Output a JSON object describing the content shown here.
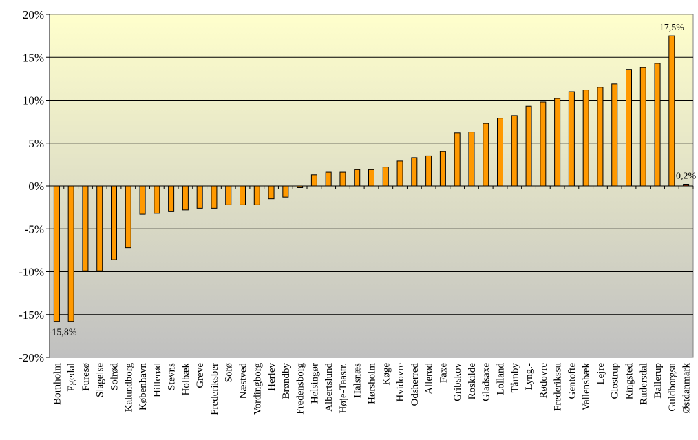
{
  "chart_data": {
    "type": "bar",
    "categories": [
      "Bornholm",
      "Egedal",
      "Furesø",
      "Slagelse",
      "Solrød",
      "Kalundborg",
      "København",
      "Hillerød",
      "Stevns",
      "Holbæk",
      "Greve",
      "Frederiksber",
      "Sorø",
      "Næstved",
      "Vordingborg",
      "Herlev",
      "Brøndby",
      "Fredensborg",
      "Helsingør",
      "Albertslund",
      "Høje-Taastr.",
      "Halsnæs",
      "Hørsholm",
      "Køge",
      "Hvidovre",
      "Odsherred",
      "Allerød",
      "Faxe",
      "Gribskov",
      "Roskilde",
      "Gladsaxe",
      "Lolland",
      "Tårnby",
      "Lyng.-",
      "Rødovre",
      "Frederikssu",
      "Gentofte",
      "Vallensbæk",
      "Lejre",
      "Glostrup",
      "Ringsted",
      "Rudersdal",
      "Ballerup",
      "Guldborgsu",
      "Østdanmark"
    ],
    "values": [
      -15.8,
      -15.8,
      -9.9,
      -9.9,
      -8.6,
      -7.2,
      -3.3,
      -3.2,
      -3.0,
      -2.8,
      -2.6,
      -2.6,
      -2.2,
      -2.2,
      -2.2,
      -1.5,
      -1.3,
      -0.2,
      1.3,
      1.6,
      1.6,
      1.9,
      1.9,
      2.2,
      2.9,
      3.3,
      3.5,
      4.0,
      6.2,
      6.3,
      7.3,
      7.9,
      8.2,
      9.3,
      9.8,
      10.2,
      11.0,
      11.2,
      11.5,
      11.9,
      13.6,
      13.8,
      14.3,
      17.5,
      0.2
    ],
    "highlight_index": 44,
    "bar_color": "#FF9900",
    "highlight_color": "#CC3300",
    "ylim": [
      -20,
      20
    ],
    "yticks": [
      -20,
      -15,
      -10,
      -5,
      0,
      5,
      10,
      15,
      20
    ],
    "ytick_labels": [
      "-20%",
      "-15%",
      "-10%",
      "-5%",
      "0%",
      "5%",
      "10%",
      "15%",
      "20%"
    ],
    "data_labels": [
      {
        "index": 1,
        "text": "-15,8%"
      },
      {
        "index": 43,
        "text": "17,5%"
      },
      {
        "index": 44,
        "text": "0,2%"
      }
    ],
    "grid": true,
    "background_top": "#FFFFCC",
    "background_bottom": "#C0C0C0",
    "title": "",
    "xlabel": "",
    "ylabel": ""
  }
}
